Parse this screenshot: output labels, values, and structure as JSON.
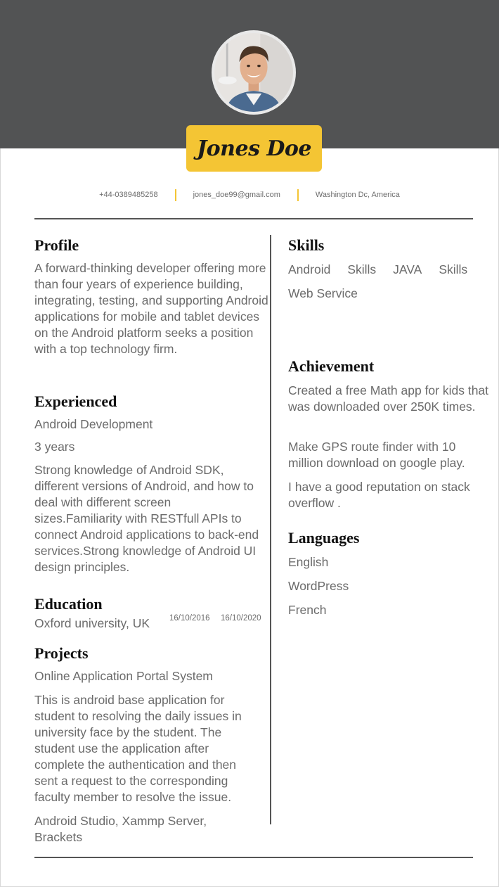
{
  "name": "Jones Doe",
  "contact": {
    "phone": "+44-0389485258",
    "email": "jones_doe99@gmail.com",
    "location": "Washington Dc, America"
  },
  "colors": {
    "header_band": "#525354",
    "accent": "#f4c534",
    "heading_text": "#111111",
    "body_text": "#6b6b6b"
  },
  "profile": {
    "heading": "Profile",
    "text": "A forward-thinking developer offering more than four years of experience building, integrating, testing, and supporting Android applications for mobile and tablet devices on the Android platform seeks a position with a top technology firm."
  },
  "experienced": {
    "heading": "Experienced",
    "role": "Android Development",
    "duration": "3 years",
    "description": "Strong knowledge of Android SDK, different versions of Android, and how to deal with different screen sizes.Familiarity with RESTfull APIs to connect Android applications to back-end services.Strong knowledge of Android UI design principles."
  },
  "education": {
    "heading": "Education",
    "school": "Oxford university, UK",
    "start_date": "16/10/2016",
    "end_date": "16/10/2020"
  },
  "projects": {
    "heading": "Projects",
    "title": "Online Application Portal System",
    "description": "This is android base application for student to resolving the daily issues in university face by the student. The student use the application after complete the authentication and then sent a request to the corresponding faculty member to resolve the issue.",
    "tools": "Android Studio, Xammp Server, Brackets"
  },
  "skills": {
    "heading": "Skills",
    "items": [
      "Android",
      "Skills",
      "JAVA",
      "Skills",
      "Web Service"
    ]
  },
  "achievement": {
    "heading": "Achievement",
    "items": [
      "Created a free Math app for kids that was downloaded over 250K times.",
      "Make GPS route finder with 10 million download on google play.",
      "I have a good reputation on stack overflow ."
    ]
  },
  "languages": {
    "heading": "Languages",
    "items": [
      "English",
      "WordPress",
      "French"
    ]
  }
}
